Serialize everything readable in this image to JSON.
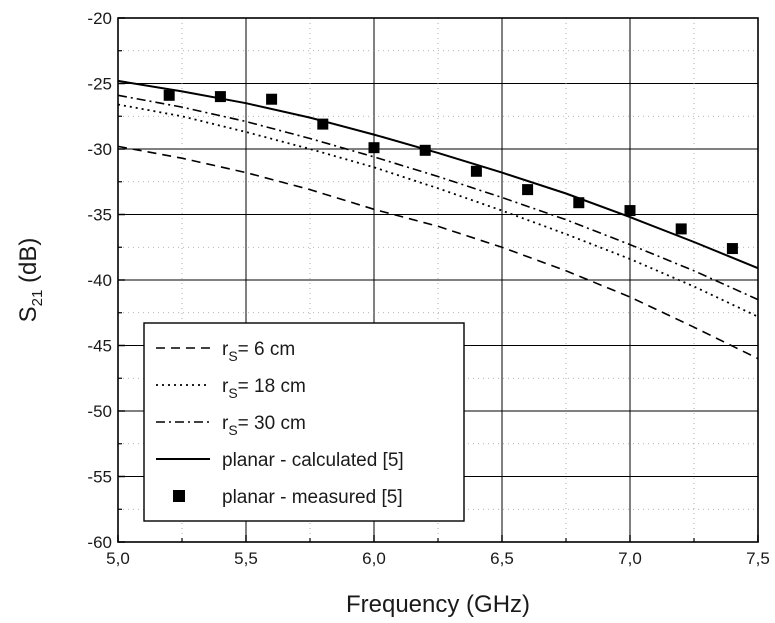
{
  "chart_data": {
    "type": "line",
    "xlabel": "Frequency (GHz)",
    "ylabel": {
      "main": "S",
      "sub": "21",
      "unit": " (dB)"
    },
    "xlim": [
      5.0,
      7.5
    ],
    "ylim": [
      -60,
      -20
    ],
    "x_ticks": [
      "5,0",
      "5,5",
      "6,0",
      "6,5",
      "7,0",
      "7,5"
    ],
    "x_tick_values": [
      5.0,
      5.5,
      6.0,
      6.5,
      7.0,
      7.5
    ],
    "y_ticks": [
      "-20",
      "-25",
      "-30",
      "-35",
      "-40",
      "-45",
      "-50",
      "-55",
      "-60"
    ],
    "y_tick_values": [
      -20,
      -25,
      -30,
      -35,
      -40,
      -45,
      -50,
      -55,
      -60
    ],
    "grid": true,
    "legend_position": "bottom-left",
    "series": [
      {
        "name": {
          "pre": "r",
          "sub": "S",
          "post": "=   6 cm"
        },
        "style": "dashed",
        "color": "#000000",
        "x": [
          5.0,
          5.25,
          5.5,
          5.75,
          6.0,
          6.25,
          6.5,
          6.75,
          7.0,
          7.25,
          7.5
        ],
        "y": [
          -29.8,
          -30.7,
          -31.8,
          -33.1,
          -34.6,
          -35.9,
          -37.5,
          -39.3,
          -41.3,
          -43.6,
          -46.0
        ]
      },
      {
        "name": {
          "pre": "r",
          "sub": "S",
          "post": "= 18 cm"
        },
        "style": "dotted",
        "color": "#000000",
        "x": [
          5.0,
          5.25,
          5.5,
          5.75,
          6.0,
          6.25,
          6.5,
          6.75,
          7.0,
          7.25,
          7.5
        ],
        "y": [
          -26.6,
          -27.5,
          -28.7,
          -30.0,
          -31.4,
          -33.0,
          -34.7,
          -36.5,
          -38.4,
          -40.5,
          -42.8
        ]
      },
      {
        "name": {
          "pre": "r",
          "sub": "S",
          "post": "= 30 cm"
        },
        "style": "dashdot",
        "color": "#000000",
        "x": [
          5.0,
          5.25,
          5.5,
          5.75,
          6.0,
          6.25,
          6.5,
          6.75,
          7.0,
          7.25,
          7.5
        ],
        "y": [
          -25.9,
          -26.8,
          -27.9,
          -29.2,
          -30.6,
          -32.1,
          -33.7,
          -35.4,
          -37.3,
          -39.3,
          -41.5
        ]
      },
      {
        "name": {
          "pre": "planar -  calculated [5]",
          "sub": "",
          "post": ""
        },
        "style": "solid",
        "color": "#000000",
        "x": [
          5.0,
          5.25,
          5.5,
          5.75,
          6.0,
          6.25,
          6.5,
          6.75,
          7.0,
          7.25,
          7.5
        ],
        "y": [
          -24.8,
          -25.6,
          -26.5,
          -27.6,
          -28.9,
          -30.3,
          -31.8,
          -33.4,
          -35.2,
          -37.1,
          -39.1
        ]
      },
      {
        "name": {
          "pre": "planar - measured  [5]",
          "sub": "",
          "post": ""
        },
        "style": "markers",
        "color": "#000000",
        "x": [
          5.2,
          5.4,
          5.6,
          5.8,
          6.0,
          6.2,
          6.4,
          6.6,
          6.8,
          7.0,
          7.2,
          7.4
        ],
        "y": [
          -25.9,
          -26.0,
          -26.2,
          -28.1,
          -29.9,
          -30.1,
          -31.7,
          -33.1,
          -34.1,
          -34.7,
          -36.1,
          -37.6
        ]
      }
    ]
  }
}
